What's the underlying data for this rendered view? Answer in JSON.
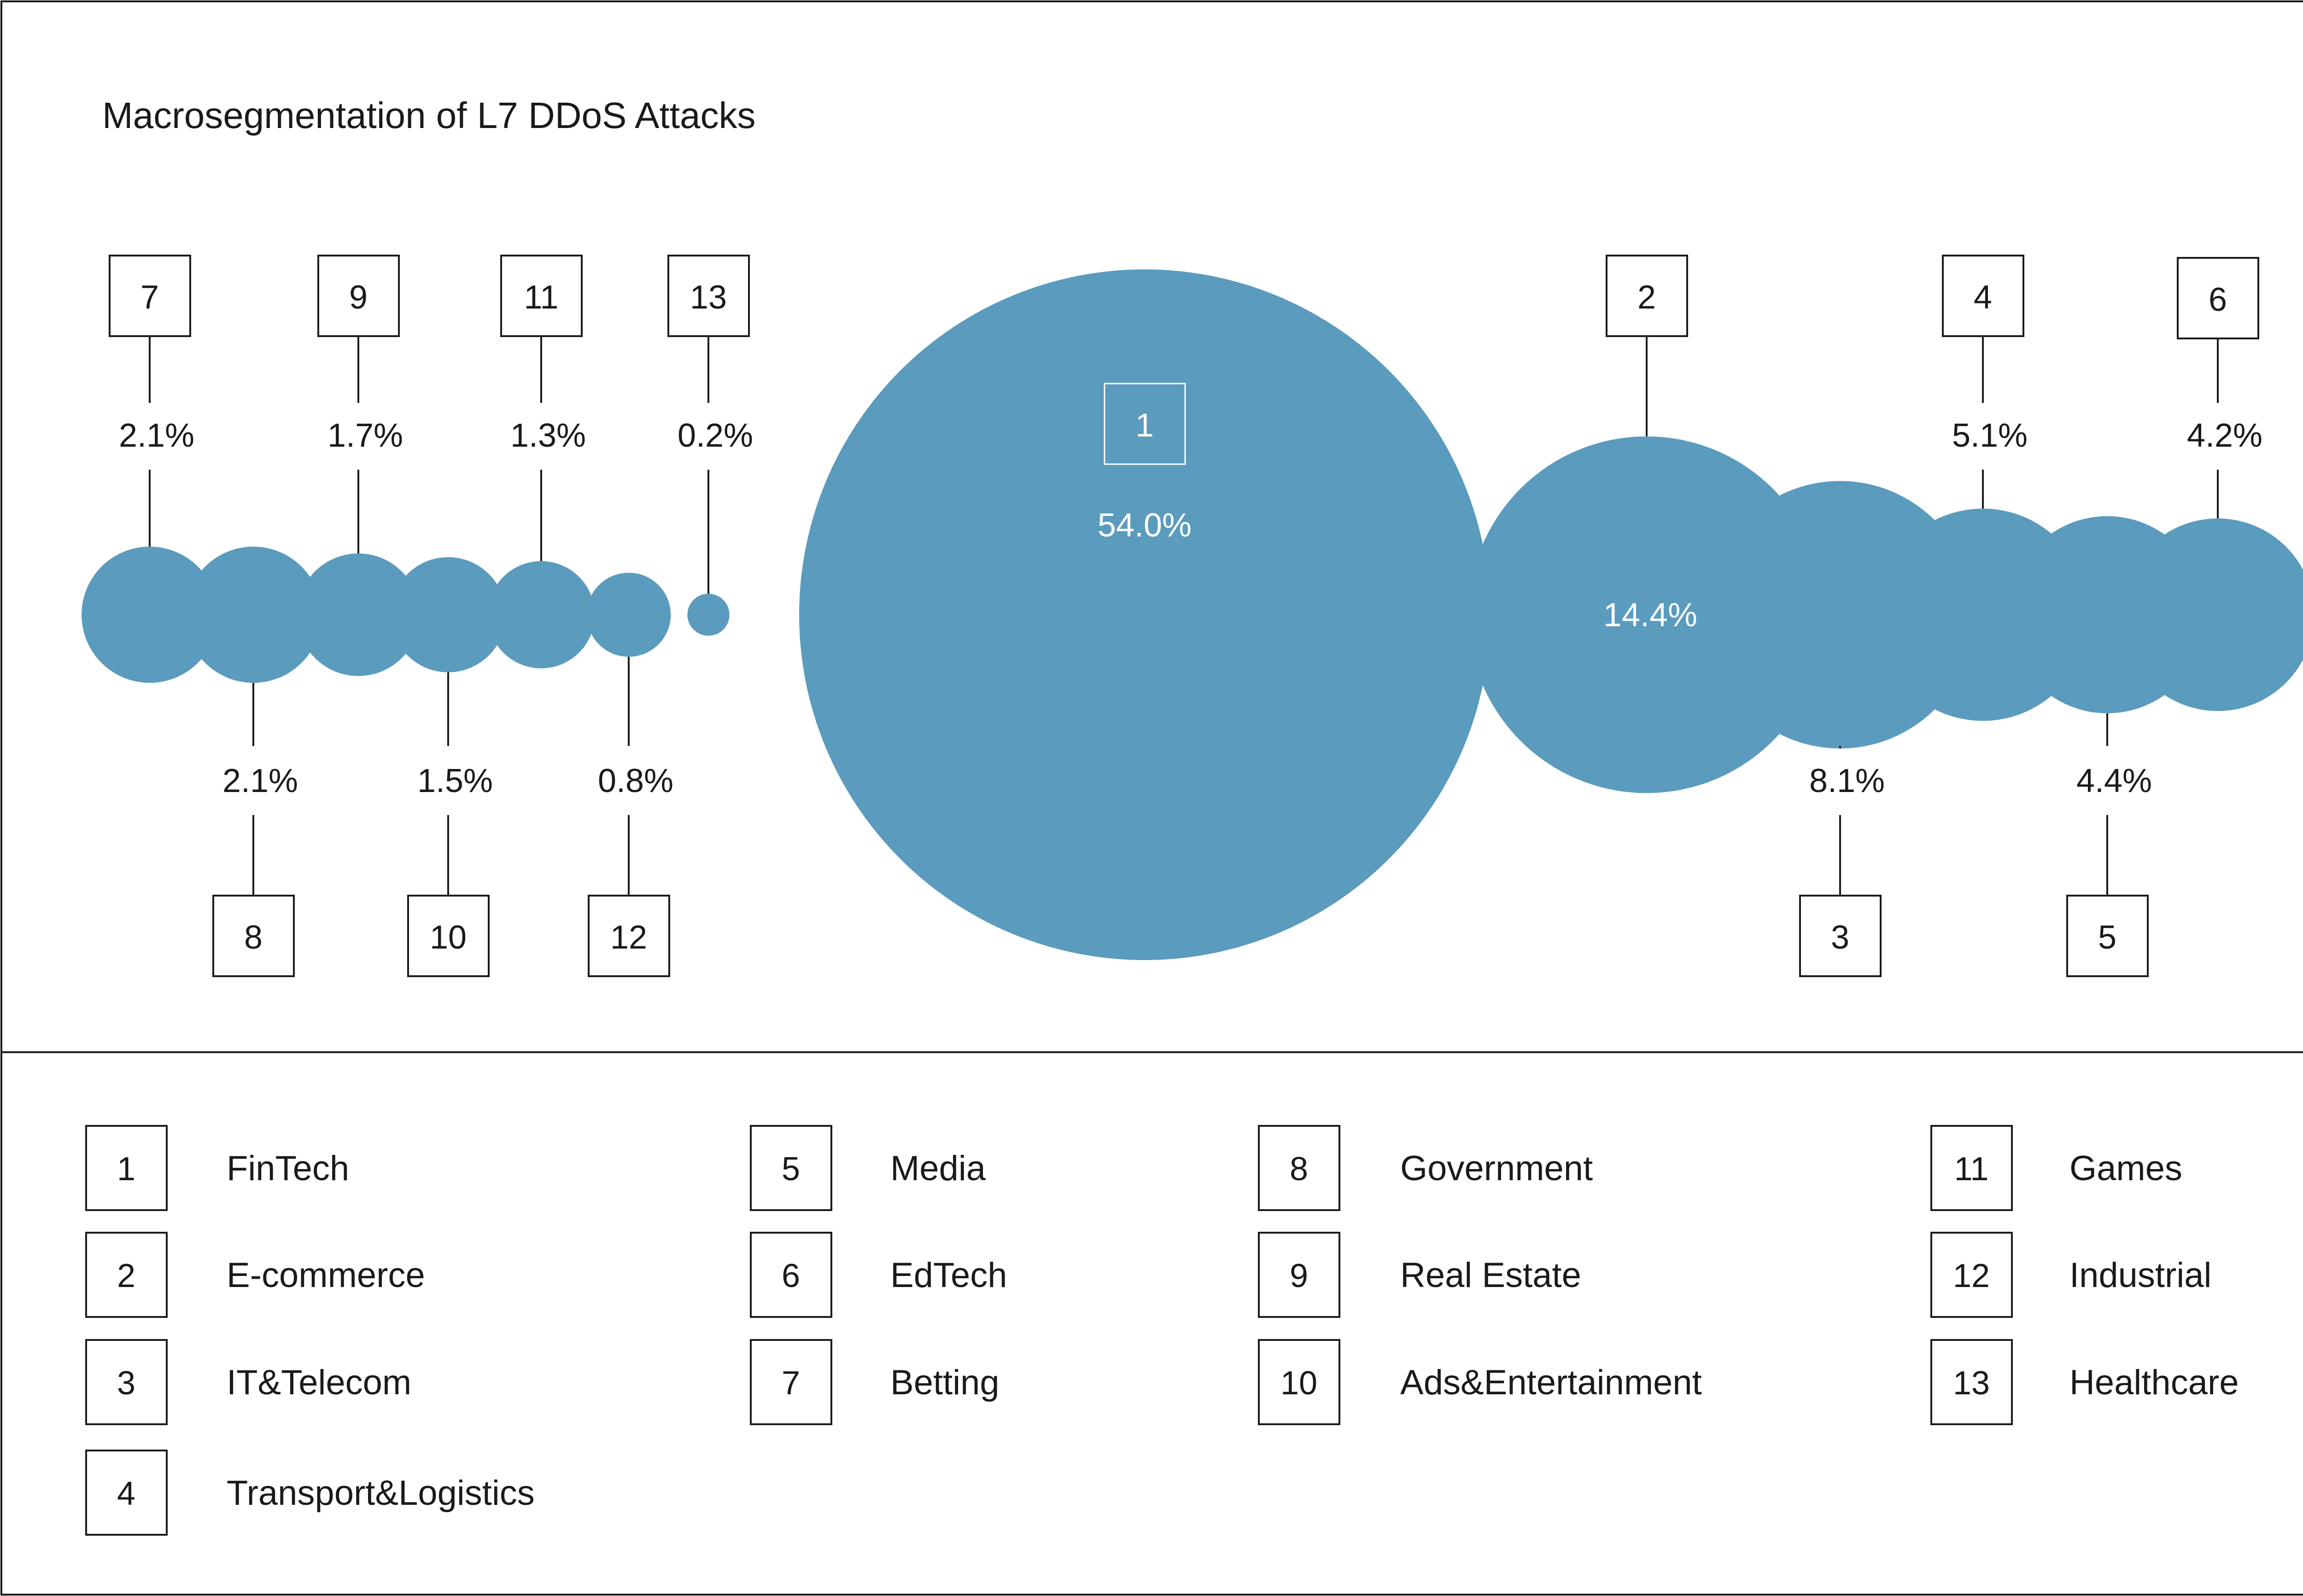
{
  "chart_data": {
    "type": "bubble",
    "title": "Macrosegmentation of L7 DDoS Attacks",
    "color": "#5b9bbd",
    "points": [
      {
        "id": "1",
        "value": 54.0,
        "label": "54.0%"
      },
      {
        "id": "2",
        "value": 14.4,
        "label": "14.4%"
      },
      {
        "id": "3",
        "value": 8.1,
        "label": "8.1%"
      },
      {
        "id": "4",
        "value": 5.1,
        "label": "5.1%"
      },
      {
        "id": "5",
        "value": 4.4,
        "label": "4.4%"
      },
      {
        "id": "6",
        "value": 4.2,
        "label": "4.2%"
      },
      {
        "id": "7",
        "value": 2.1,
        "label": "2.1%"
      },
      {
        "id": "8",
        "value": 2.1,
        "label": "2.1%"
      },
      {
        "id": "9",
        "value": 1.7,
        "label": "1.7%"
      },
      {
        "id": "10",
        "value": 1.5,
        "label": "1.5%"
      },
      {
        "id": "11",
        "value": 1.3,
        "label": "1.3%"
      },
      {
        "id": "12",
        "value": 0.8,
        "label": "0.8%"
      },
      {
        "id": "13",
        "value": 0.2,
        "label": "0.2%"
      }
    ],
    "legend": [
      {
        "id": "1",
        "name": "FinTech"
      },
      {
        "id": "2",
        "name": "E-commerce"
      },
      {
        "id": "3",
        "name": "IT&Telecom"
      },
      {
        "id": "4",
        "name": "Transport&Logistics"
      },
      {
        "id": "5",
        "name": "Media"
      },
      {
        "id": "6",
        "name": "EdTech"
      },
      {
        "id": "7",
        "name": "Betting"
      },
      {
        "id": "8",
        "name": "Government"
      },
      {
        "id": "9",
        "name": "Real Estate"
      },
      {
        "id": "10",
        "name": "Ads&Entertainment"
      },
      {
        "id": "11",
        "name": "Games"
      },
      {
        "id": "12",
        "name": "Industrial"
      },
      {
        "id": "13",
        "name": "Healthcare"
      }
    ]
  }
}
